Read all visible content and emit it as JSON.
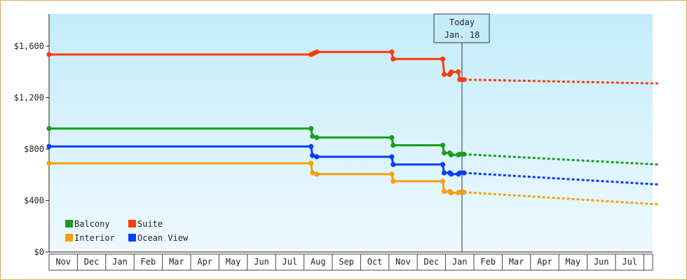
{
  "chart_data": {
    "type": "line",
    "title": "",
    "xlabel": "",
    "ylabel": "",
    "ylim": [
      0,
      1850
    ],
    "y_ticks": [
      {
        "value": 0,
        "label": "$0"
      },
      {
        "value": 400,
        "label": "$400"
      },
      {
        "value": 800,
        "label": "$800"
      },
      {
        "value": 1200,
        "label": "$1,200"
      },
      {
        "value": 1600,
        "label": "$1,600"
      }
    ],
    "months": [
      "Nov",
      "Dec",
      "Jan",
      "Feb",
      "Mar",
      "Apr",
      "May",
      "Jun",
      "Jul",
      "Aug",
      "Sep",
      "Oct",
      "Nov",
      "Dec",
      "Jan",
      "Feb",
      "Mar",
      "Apr",
      "May",
      "Jun",
      "Jul"
    ],
    "x_unit": "months from start of Nov",
    "x_range": [
      0,
      21.5
    ],
    "today": {
      "line1": "Today",
      "line2": "Jan. 18",
      "x": 14.58
    },
    "grid": false,
    "legend_position": "bottom-left",
    "series": [
      {
        "name": "Suite",
        "color": "#ff3b0a",
        "steps": [
          [
            0,
            1535
          ],
          [
            9.25,
            1535
          ],
          [
            9.35,
            1545
          ],
          [
            9.45,
            1555
          ],
          [
            12.1,
            1555
          ],
          [
            12.15,
            1500
          ],
          [
            13.9,
            1500
          ],
          [
            13.95,
            1380
          ],
          [
            14.15,
            1380
          ],
          [
            14.2,
            1400
          ],
          [
            14.45,
            1400
          ],
          [
            14.5,
            1340
          ],
          [
            14.65,
            1340
          ]
        ],
        "markers": [
          [
            0,
            1535
          ],
          [
            9.25,
            1535
          ],
          [
            9.35,
            1545
          ],
          [
            9.45,
            1555
          ],
          [
            12.1,
            1555
          ],
          [
            12.15,
            1500
          ],
          [
            13.9,
            1500
          ],
          [
            13.95,
            1380
          ],
          [
            14.15,
            1380
          ],
          [
            14.2,
            1400
          ],
          [
            14.45,
            1400
          ],
          [
            14.5,
            1340
          ],
          [
            14.65,
            1340
          ]
        ],
        "forecast": [
          [
            14.65,
            1340
          ],
          [
            21.5,
            1310
          ]
        ]
      },
      {
        "name": "Balcony",
        "color": "#1a9e1a",
        "steps": [
          [
            0,
            960
          ],
          [
            9.25,
            960
          ],
          [
            9.3,
            900
          ],
          [
            9.45,
            890
          ],
          [
            12.1,
            890
          ],
          [
            12.15,
            830
          ],
          [
            13.9,
            830
          ],
          [
            13.95,
            770
          ],
          [
            14.15,
            770
          ],
          [
            14.2,
            755
          ],
          [
            14.45,
            755
          ],
          [
            14.5,
            760
          ],
          [
            14.65,
            760
          ]
        ],
        "markers": [
          [
            0,
            960
          ],
          [
            9.25,
            960
          ],
          [
            9.3,
            900
          ],
          [
            9.45,
            890
          ],
          [
            12.1,
            890
          ],
          [
            12.15,
            830
          ],
          [
            13.9,
            830
          ],
          [
            13.95,
            770
          ],
          [
            14.15,
            770
          ],
          [
            14.2,
            755
          ],
          [
            14.45,
            755
          ],
          [
            14.5,
            760
          ],
          [
            14.65,
            760
          ]
        ],
        "forecast": [
          [
            14.65,
            760
          ],
          [
            21.5,
            680
          ]
        ]
      },
      {
        "name": "Ocean View",
        "color": "#0a3cff",
        "steps": [
          [
            0,
            820
          ],
          [
            9.25,
            820
          ],
          [
            9.3,
            750
          ],
          [
            9.45,
            740
          ],
          [
            12.1,
            740
          ],
          [
            12.15,
            680
          ],
          [
            13.9,
            680
          ],
          [
            13.95,
            615
          ],
          [
            14.15,
            615
          ],
          [
            14.2,
            605
          ],
          [
            14.45,
            605
          ],
          [
            14.5,
            615
          ],
          [
            14.65,
            615
          ]
        ],
        "markers": [
          [
            0,
            820
          ],
          [
            9.25,
            820
          ],
          [
            9.3,
            750
          ],
          [
            9.45,
            740
          ],
          [
            12.1,
            740
          ],
          [
            12.15,
            680
          ],
          [
            13.9,
            680
          ],
          [
            13.95,
            615
          ],
          [
            14.15,
            615
          ],
          [
            14.2,
            605
          ],
          [
            14.45,
            605
          ],
          [
            14.5,
            615
          ],
          [
            14.65,
            615
          ]
        ],
        "forecast": [
          [
            14.65,
            615
          ],
          [
            21.5,
            525
          ]
        ]
      },
      {
        "name": "Interior",
        "color": "#f5a00a",
        "steps": [
          [
            0,
            690
          ],
          [
            9.25,
            690
          ],
          [
            9.3,
            615
          ],
          [
            9.45,
            605
          ],
          [
            12.1,
            605
          ],
          [
            12.15,
            550
          ],
          [
            13.9,
            550
          ],
          [
            13.95,
            470
          ],
          [
            14.15,
            470
          ],
          [
            14.2,
            460
          ],
          [
            14.45,
            460
          ],
          [
            14.5,
            465
          ],
          [
            14.65,
            465
          ]
        ],
        "markers": [
          [
            0,
            690
          ],
          [
            9.25,
            690
          ],
          [
            9.3,
            615
          ],
          [
            9.45,
            605
          ],
          [
            12.1,
            605
          ],
          [
            12.15,
            550
          ],
          [
            13.9,
            550
          ],
          [
            13.95,
            470
          ],
          [
            14.15,
            470
          ],
          [
            14.2,
            460
          ],
          [
            14.45,
            460
          ],
          [
            14.5,
            465
          ],
          [
            14.65,
            465
          ]
        ],
        "forecast": [
          [
            14.65,
            465
          ],
          [
            21.5,
            370
          ]
        ]
      }
    ],
    "legend": [
      {
        "name": "Balcony",
        "color": "#1a9e1a"
      },
      {
        "name": "Suite",
        "color": "#ff3b0a"
      },
      {
        "name": "Interior",
        "color": "#f5a00a"
      },
      {
        "name": "Ocean View",
        "color": "#0a3cff"
      }
    ]
  }
}
